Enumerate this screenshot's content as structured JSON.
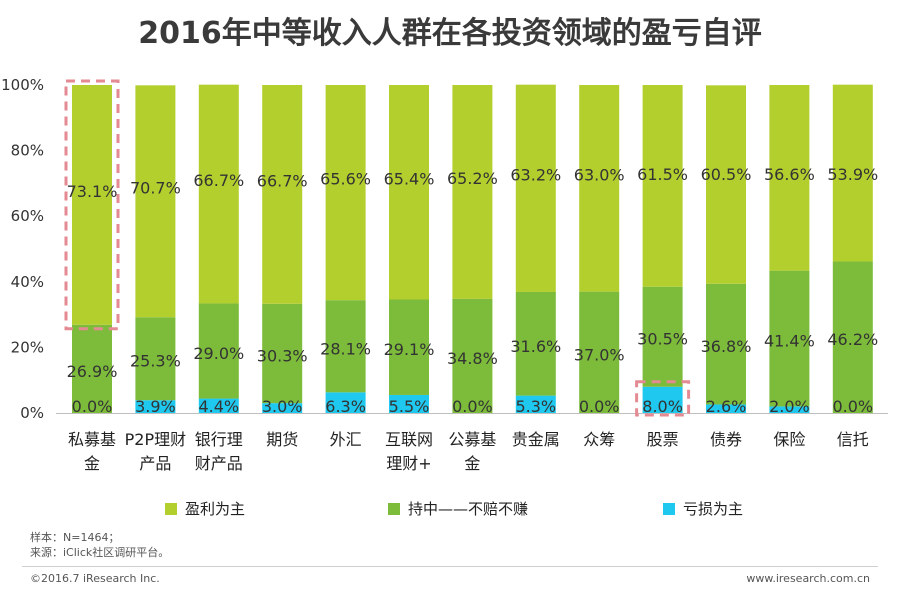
{
  "title": "2016年中等收入人群在各投资领域的盈亏自评",
  "colors": {
    "profit": "#b3cf2e",
    "hold": "#7dbb3b",
    "loss": "#1ec8ef",
    "highlight": "#e48a92"
  },
  "chart_data": {
    "type": "bar",
    "stacked": true,
    "title": "2016年中等收入人群在各投资领域的盈亏自评",
    "categories": [
      [
        "私募基",
        "金"
      ],
      [
        "P2P理财",
        "产品"
      ],
      [
        "银行理",
        "财产品"
      ],
      [
        "期货"
      ],
      [
        "外汇"
      ],
      [
        "互联网",
        "理财+"
      ],
      [
        "公募基",
        "金"
      ],
      [
        "贵金属"
      ],
      [
        "众筹"
      ],
      [
        "股票"
      ],
      [
        "债券"
      ],
      [
        "保险"
      ],
      [
        "信托"
      ]
    ],
    "series": [
      {
        "name": "亏损为主",
        "values": [
          0.0,
          3.9,
          4.4,
          3.0,
          6.3,
          5.5,
          0.0,
          5.3,
          0.0,
          8.0,
          2.6,
          2.0,
          0.0
        ],
        "labels": [
          "0.0%",
          "3.9%",
          "4.4%",
          "3.0%",
          "6.3%",
          "5.5%",
          "0.0%",
          "5.3%",
          "0.0%",
          "8.0%",
          "2.6%",
          "2.0%",
          "0.0%"
        ]
      },
      {
        "name": "持中——不赔不赚",
        "values": [
          26.9,
          25.3,
          29.0,
          30.3,
          28.1,
          29.1,
          34.8,
          31.6,
          37.0,
          30.5,
          36.8,
          41.4,
          46.2
        ],
        "labels": [
          "26.9%",
          "25.3%",
          "29.0%",
          "30.3%",
          "28.1%",
          "29.1%",
          "34.8%",
          "31.6%",
          "37.0%",
          "30.5%",
          "36.8%",
          "41.4%",
          "46.2%"
        ]
      },
      {
        "name": "盈利为主",
        "values": [
          73.1,
          70.7,
          66.7,
          66.7,
          65.6,
          65.4,
          65.2,
          63.2,
          63.0,
          61.5,
          60.5,
          56.6,
          53.9
        ],
        "labels": [
          "73.1%",
          "70.7%",
          "66.7%",
          "66.7%",
          "65.6%",
          "65.4%",
          "65.2%",
          "63.2%",
          "63.0%",
          "61.5%",
          "60.5%",
          "56.6%",
          "53.9%"
        ]
      }
    ],
    "yticks": [
      "0%",
      "20%",
      "40%",
      "60%",
      "80%",
      "100%"
    ],
    "ylim": [
      0,
      100
    ],
    "highlights": [
      "私募基金 盈利为主",
      "股票 亏损为主"
    ],
    "legend_position": "bottom"
  },
  "legend": [
    {
      "label": "盈利为主",
      "color": "#b3cf2e"
    },
    {
      "label": "持中——不赔不赚",
      "color": "#7dbb3b"
    },
    {
      "label": "亏损为主",
      "color": "#1ec8ef"
    }
  ],
  "notes": [
    "样本：N=1464；",
    "来源：iClick社区调研平台。"
  ],
  "copyright": "©2016.7 iResearch Inc.",
  "website": "www.iresearch.com.cn"
}
